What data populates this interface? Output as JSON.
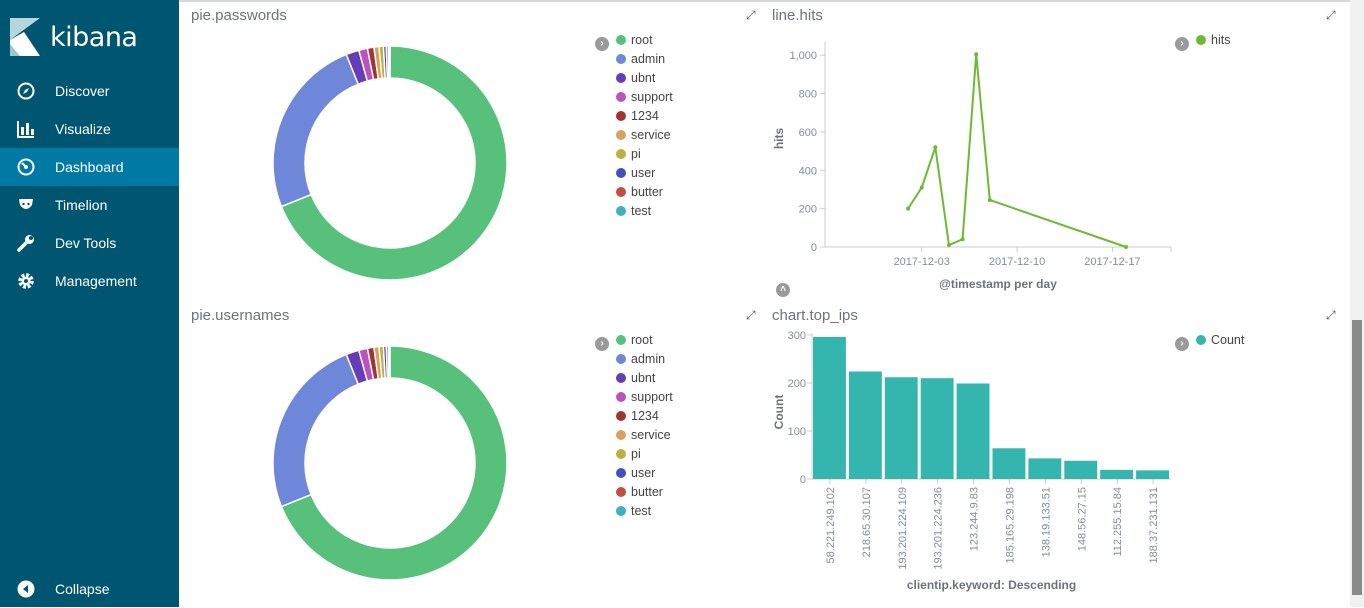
{
  "app": {
    "logo_text": "kibana"
  },
  "sidebar": {
    "items": [
      {
        "label": "Discover",
        "icon": "compass-icon"
      },
      {
        "label": "Visualize",
        "icon": "bar-chart-icon"
      },
      {
        "label": "Dashboard",
        "icon": "dashboard-icon",
        "active": true
      },
      {
        "label": "Timelion",
        "icon": "timelion-icon"
      },
      {
        "label": "Dev Tools",
        "icon": "wrench-icon"
      },
      {
        "label": "Management",
        "icon": "gear-icon"
      }
    ],
    "collapse": "Collapse"
  },
  "panels": {
    "passwords": {
      "title": "pie.passwords"
    },
    "usernames": {
      "title": "pie.usernames"
    },
    "hits": {
      "title": "line.hits"
    },
    "top_ips": {
      "title": "chart.top_ips"
    }
  },
  "pie_legend": [
    {
      "label": "root",
      "color": "#57c17b",
      "value": 69
    },
    {
      "label": "admin",
      "color": "#6f87d8",
      "value": 25
    },
    {
      "label": "ubnt",
      "color": "#663db8",
      "value": 1.8
    },
    {
      "label": "support",
      "color": "#bc52bc",
      "value": 1.2
    },
    {
      "label": "1234",
      "color": "#9e3533",
      "value": 0.9
    },
    {
      "label": "service",
      "color": "#daa05d",
      "value": 0.7
    },
    {
      "label": "pi",
      "color": "#bfaf40",
      "value": 0.6
    },
    {
      "label": "user",
      "color": "#4050bf",
      "value": 0.4
    },
    {
      "label": "butter",
      "color": "#bf5040",
      "value": 0.3
    },
    {
      "label": "test",
      "color": "#40afbf",
      "value": 0.2
    }
  ],
  "chart_data": [
    {
      "type": "pie",
      "title": "pie.passwords",
      "donut": true,
      "labels": [
        "root",
        "admin",
        "ubnt",
        "support",
        "1234",
        "service",
        "pi",
        "user",
        "butter",
        "test"
      ],
      "values": [
        69,
        25,
        1.8,
        1.2,
        0.9,
        0.7,
        0.6,
        0.4,
        0.3,
        0.2
      ]
    },
    {
      "type": "pie",
      "title": "pie.usernames",
      "donut": true,
      "labels": [
        "root",
        "admin",
        "ubnt",
        "support",
        "1234",
        "service",
        "pi",
        "user",
        "butter",
        "test"
      ],
      "values": [
        69,
        25,
        1.8,
        1.2,
        0.9,
        0.7,
        0.6,
        0.4,
        0.3,
        0.2
      ]
    },
    {
      "type": "line",
      "title": "line.hits",
      "xlabel": "@timestamp per day",
      "ylabel": "hits",
      "legend": "hits",
      "color": "#6eb934",
      "x": [
        "2017-12-02",
        "2017-12-03",
        "2017-12-04",
        "2017-12-05",
        "2017-12-06",
        "2017-12-07",
        "2017-12-08",
        "2017-12-18"
      ],
      "x_day": [
        6,
        7,
        8,
        9,
        10,
        11,
        12,
        22
      ],
      "y": [
        200,
        310,
        520,
        10,
        40,
        1005,
        245,
        0
      ],
      "xticks": [
        {
          "label": "2017-12-03",
          "day": 7
        },
        {
          "label": "2017-12-10",
          "day": 14
        },
        {
          "label": "2017-12-17",
          "day": 21
        }
      ],
      "xlim_day": [
        -0.1,
        25.3
      ],
      "yticks": [
        "0",
        "200",
        "400",
        "600",
        "800",
        "1,000"
      ],
      "ylim": [
        0,
        1100
      ]
    },
    {
      "type": "bar",
      "title": "chart.top_ips",
      "xlabel": "clientip.keyword: Descending",
      "ylabel": "Count",
      "legend": "Count",
      "color": "#34b6ae",
      "categories": [
        "58.221.249.102",
        "218.65.30.107",
        "193.201.224.109",
        "193.201.224.236",
        "123.244.9.83",
        "185.165.29.198",
        "138.19.133.51",
        "148.56.27.15",
        "112.255.15.84",
        "188.37.231.131"
      ],
      "values": [
        296,
        224,
        212,
        210,
        199,
        64,
        43,
        38,
        19,
        18
      ],
      "yticks": [
        "0",
        "100",
        "200",
        "300"
      ],
      "ylim": [
        0,
        300
      ]
    }
  ]
}
